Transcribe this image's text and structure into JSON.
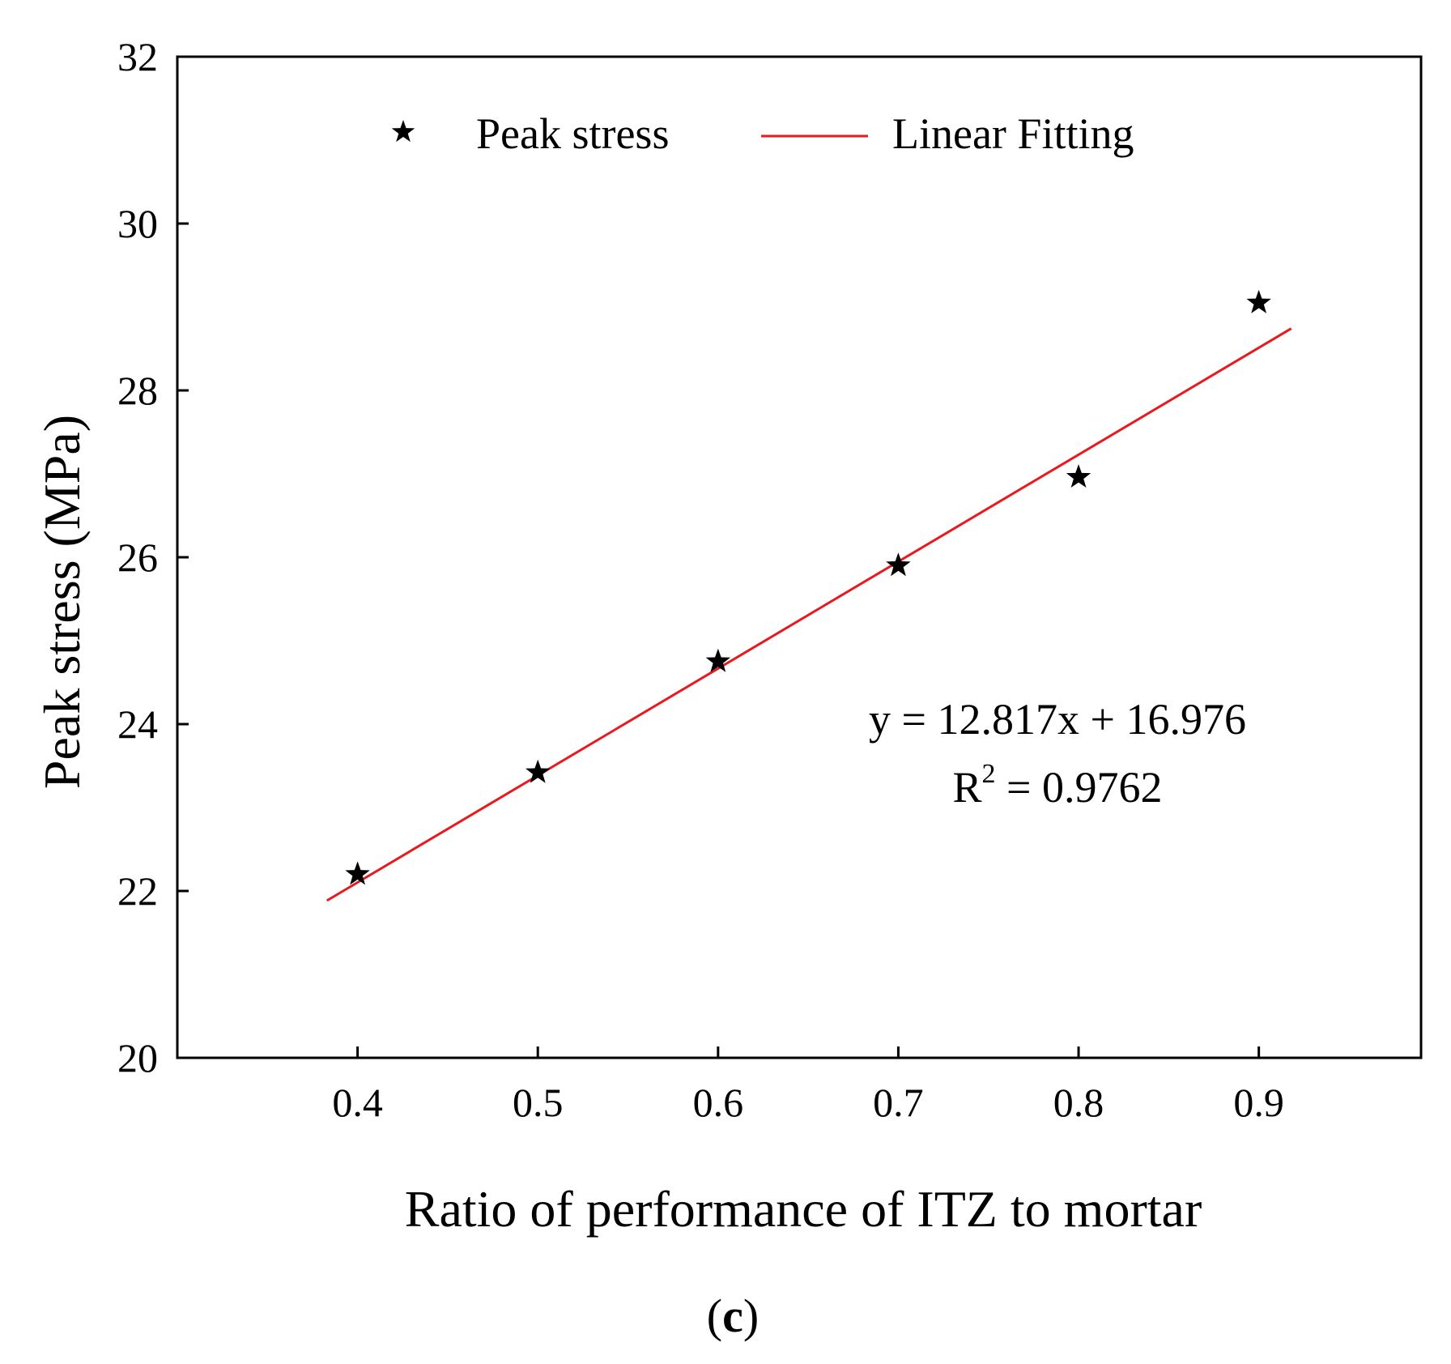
{
  "chart_data": {
    "type": "scatter",
    "panel_label": {
      "open": "(",
      "letter": "c",
      "close": ")"
    },
    "xlabel": "Ratio of performance of ITZ to mortar",
    "ylabel": "Peak stress (MPa)",
    "xlim": [
      0.3,
      0.99
    ],
    "ylim": [
      20,
      32
    ],
    "xticks": [
      0.4,
      0.5,
      0.6,
      0.7,
      0.8,
      0.9
    ],
    "xtick_labels": [
      "0.4",
      "0.5",
      "0.6",
      "0.7",
      "0.8",
      "0.9"
    ],
    "yticks": [
      20,
      22,
      24,
      26,
      28,
      30,
      32
    ],
    "ytick_labels": [
      "20",
      "22",
      "24",
      "26",
      "28",
      "30",
      "32"
    ],
    "series": [
      {
        "name": "Peak stress",
        "marker": "star",
        "color": "#000000",
        "x": [
          0.4,
          0.5,
          0.6,
          0.7,
          0.8,
          0.9
        ],
        "y": [
          22.2,
          23.42,
          24.75,
          25.9,
          26.96,
          29.05
        ]
      }
    ],
    "fit": {
      "name": "Linear Fitting",
      "color": "#e8191f",
      "slope": 12.817,
      "intercept": 16.976,
      "x_range": [
        0.383,
        0.918
      ]
    },
    "legend": {
      "position": "top",
      "entries": [
        "Peak stress",
        "Linear Fitting"
      ]
    },
    "annotation": {
      "equation": "y = 12.817x + 16.976",
      "r2_prefix": "R",
      "r2_sup": "2",
      "r2_value": " = 0.9762"
    }
  }
}
